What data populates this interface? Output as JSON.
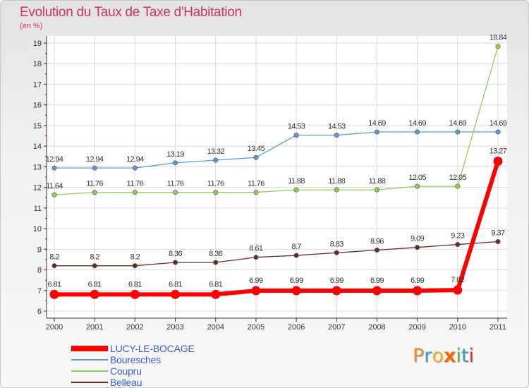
{
  "title": "Evolution du Taux de Taxe d'Habitation",
  "subtitle": "(en %)",
  "logo": {
    "letters": [
      "P",
      "r",
      "o",
      "x",
      "i",
      "t",
      "i"
    ],
    "colors": [
      "#f08a2a",
      "#3a9ad9",
      "#f0b02a",
      "#ff6600",
      "#62b836",
      "#3a9ad9",
      "#d6342b"
    ]
  },
  "chart_data": {
    "type": "line",
    "x": [
      "2000",
      "2001",
      "2002",
      "2003",
      "2004",
      "2005",
      "2006",
      "2007",
      "2008",
      "2009",
      "2010",
      "2011"
    ],
    "ylim": [
      6,
      19
    ],
    "yticks": [
      "6",
      "7",
      "8",
      "9",
      "10",
      "11",
      "12",
      "13",
      "14",
      "15",
      "16",
      "17",
      "18",
      "19"
    ],
    "grid": true,
    "legend_position": "bottom-left",
    "series": [
      {
        "name": "LUCY-LE-BOCAGE",
        "color": "#ff0000",
        "emphasis": true,
        "values": [
          6.81,
          6.81,
          6.81,
          6.81,
          6.81,
          6.99,
          6.99,
          6.99,
          6.99,
          6.99,
          7.02,
          13.27
        ],
        "labels": [
          "6.81",
          "6.81",
          "6.81",
          "6.81",
          "6.81",
          "6.99",
          "6.99",
          "6.99",
          "6.99",
          "6.99",
          "7.02",
          "13.27"
        ]
      },
      {
        "name": "Bouresches",
        "color": "#5b9bd5",
        "emphasis": false,
        "values": [
          12.94,
          12.94,
          12.94,
          13.19,
          13.32,
          13.45,
          14.53,
          14.53,
          14.69,
          14.69,
          14.69,
          14.69
        ],
        "labels": [
          "12.94",
          "12.94",
          "12.94",
          "13.19",
          "13.32",
          "13.45",
          "14.53",
          "14.53",
          "14.69",
          "14.69",
          "14.69",
          "14.69"
        ]
      },
      {
        "name": "Coupru",
        "color": "#8fd14f",
        "emphasis": false,
        "values": [
          11.64,
          11.76,
          11.76,
          11.76,
          11.76,
          11.76,
          11.88,
          11.88,
          11.88,
          12.05,
          12.05,
          18.84
        ],
        "labels": [
          "11.64",
          "11.76",
          "11.76",
          "11.76",
          "11.76",
          "11.76",
          "11.88",
          "11.88",
          "11.88",
          "12.05",
          "12.05",
          "18.84"
        ]
      },
      {
        "name": "Belleau",
        "color": "#6b2a2a",
        "emphasis": false,
        "values": [
          8.2,
          8.2,
          8.2,
          8.36,
          8.36,
          8.61,
          8.7,
          8.83,
          8.96,
          9.09,
          9.23,
          9.37
        ],
        "labels": [
          "8.2",
          "8.2",
          "8.2",
          "8.36",
          "8.36",
          "8.61",
          "8.7",
          "8.83",
          "8.96",
          "9.09",
          "9.23",
          "9.37"
        ]
      }
    ]
  }
}
